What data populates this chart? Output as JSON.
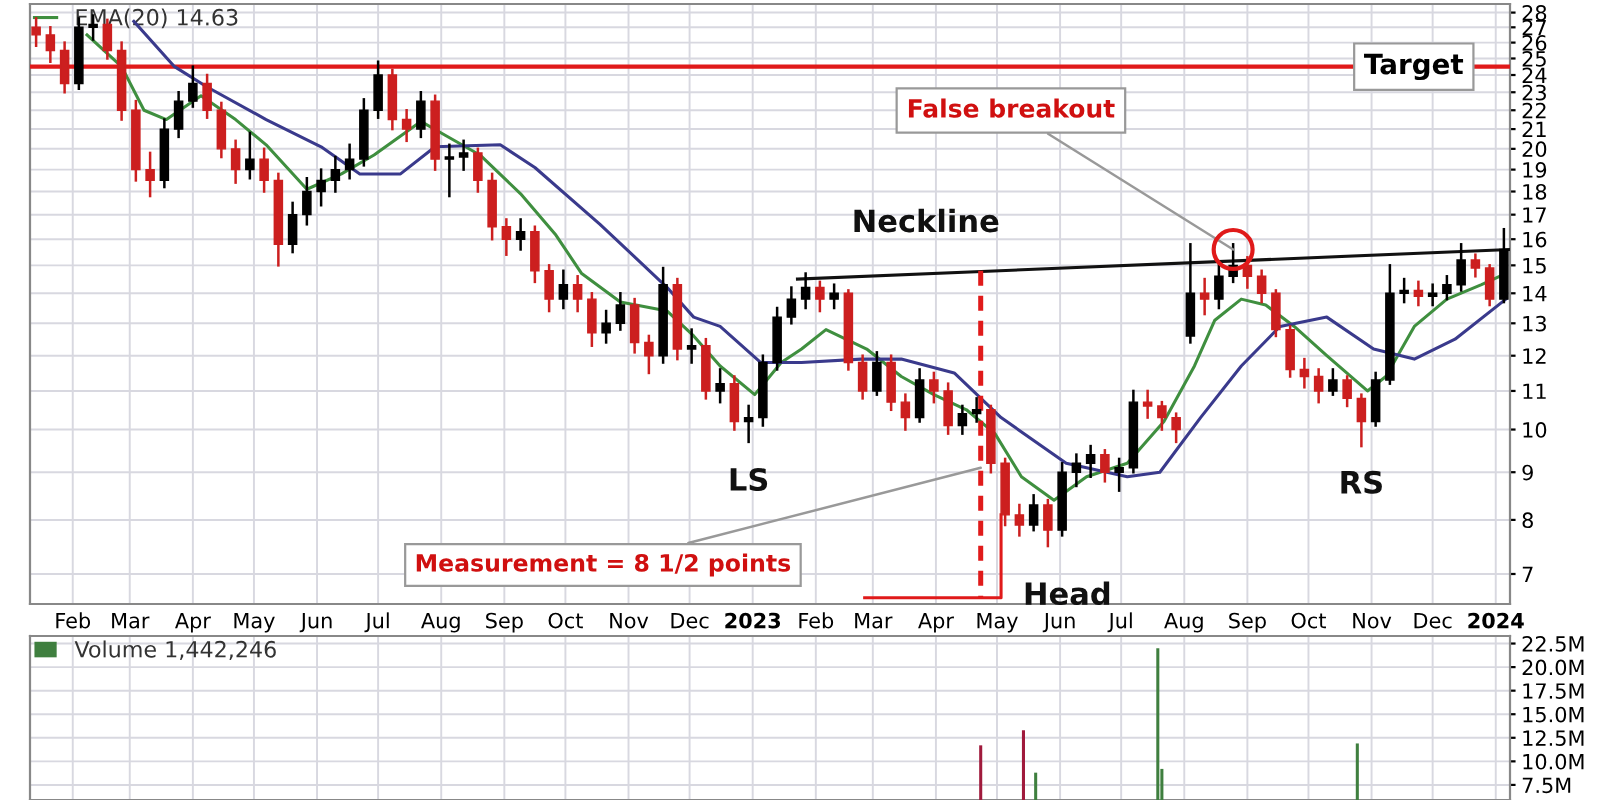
{
  "chart_data": [
    {
      "type": "candlestick",
      "log": true,
      "grid": true,
      "legend": "top left",
      "xlim": [
        "2022-01-11",
        "2024-01-08"
      ],
      "ylim": [
        6.5,
        28.6
      ],
      "xticks": [
        {
          "value": "2022-02-01",
          "label": "Feb"
        },
        {
          "value": "2022-03-01",
          "label": "Mar"
        },
        {
          "value": "2022-04-01",
          "label": "Apr"
        },
        {
          "value": "2022-05-01",
          "label": "May"
        },
        {
          "value": "2022-06-01",
          "label": "Jun"
        },
        {
          "value": "2022-07-01",
          "label": "Jul"
        },
        {
          "value": "2022-08-01",
          "label": "Aug"
        },
        {
          "value": "2022-09-01",
          "label": "Sep"
        },
        {
          "value": "2022-10-01",
          "label": "Oct"
        },
        {
          "value": "2022-11-01",
          "label": "Nov"
        },
        {
          "value": "2022-12-01",
          "label": "Dec"
        },
        {
          "value": "2023-01-01",
          "label": "2023"
        },
        {
          "value": "2023-02-01",
          "label": "Feb"
        },
        {
          "value": "2023-03-01",
          "label": "Mar"
        },
        {
          "value": "2023-04-01",
          "label": "Apr"
        },
        {
          "value": "2023-05-01",
          "label": "May"
        },
        {
          "value": "2023-06-01",
          "label": "Jun"
        },
        {
          "value": "2023-07-01",
          "label": "Jul"
        },
        {
          "value": "2023-08-01",
          "label": "Aug"
        },
        {
          "value": "2023-09-01",
          "label": "Sep"
        },
        {
          "value": "2023-10-01",
          "label": "Oct"
        },
        {
          "value": "2023-11-01",
          "label": "Nov"
        },
        {
          "value": "2023-12-01",
          "label": "Dec"
        },
        {
          "value": "2024-01-01",
          "label": "2024"
        }
      ],
      "yticks": [
        7,
        8,
        9,
        10,
        11,
        12,
        13,
        14,
        15,
        16,
        17,
        18,
        19,
        20,
        21,
        22,
        23,
        24,
        25,
        26,
        27,
        28
      ],
      "ref_lines": [
        {
          "axis": "y",
          "value": 24.5,
          "label": "Target",
          "color": "#e01a1a"
        }
      ],
      "annotations": [
        {
          "text": "False breakout",
          "x": "2023-08-25",
          "y": 15.6
        },
        {
          "text": "Neckline",
          "x": "2023-03-27",
          "y": 14.7
        },
        {
          "text": "LS",
          "x": "2022-12-30",
          "y": 9.8
        },
        {
          "text": "Measurement = 8 1/2 points",
          "x": "2023-04-23",
          "y": 9.1
        },
        {
          "text": "Head",
          "x": "2023-05-26",
          "y": 7.6
        },
        {
          "text": "RS",
          "x": "2023-10-27",
          "y": 9.6
        }
      ],
      "series": [
        {
          "type": "candlestick",
          "x": [
            "2022-01-14",
            "2022-01-21",
            "2022-01-28",
            "2022-02-04",
            "2022-02-11",
            "2022-02-18",
            "2022-02-25",
            "2022-03-04",
            "2022-03-11",
            "2022-03-18",
            "2022-03-25",
            "2022-04-01",
            "2022-04-08",
            "2022-04-15",
            "2022-04-22",
            "2022-04-29",
            "2022-05-06",
            "2022-05-13",
            "2022-05-20",
            "2022-05-27",
            "2022-06-03",
            "2022-06-10",
            "2022-06-17",
            "2022-06-24",
            "2022-07-01",
            "2022-07-08",
            "2022-07-15",
            "2022-07-22",
            "2022-07-29",
            "2022-08-05",
            "2022-08-12",
            "2022-08-19",
            "2022-08-26",
            "2022-09-02",
            "2022-09-09",
            "2022-09-16",
            "2022-09-23",
            "2022-09-30",
            "2022-10-07",
            "2022-10-14",
            "2022-10-21",
            "2022-10-28",
            "2022-11-04",
            "2022-11-11",
            "2022-11-18",
            "2022-11-25",
            "2022-12-02",
            "2022-12-09",
            "2022-12-16",
            "2022-12-23",
            "2022-12-30",
            "2023-01-06",
            "2023-01-13",
            "2023-01-20",
            "2023-01-27",
            "2023-02-03",
            "2023-02-10",
            "2023-02-17",
            "2023-02-24",
            "2023-03-03",
            "2023-03-10",
            "2023-03-17",
            "2023-03-24",
            "2023-03-31",
            "2023-04-07",
            "2023-04-14",
            "2023-04-21",
            "2023-04-28",
            "2023-05-05",
            "2023-05-12",
            "2023-05-19",
            "2023-05-26",
            "2023-06-02",
            "2023-06-09",
            "2023-06-16",
            "2023-06-23",
            "2023-06-30",
            "2023-07-07",
            "2023-07-14",
            "2023-07-21",
            "2023-07-28",
            "2023-08-04",
            "2023-08-11",
            "2023-08-18",
            "2023-08-25",
            "2023-09-01",
            "2023-09-08",
            "2023-09-15",
            "2023-09-22",
            "2023-09-29",
            "2023-10-06",
            "2023-10-13",
            "2023-10-20",
            "2023-10-27",
            "2023-11-03",
            "2023-11-10",
            "2023-11-17",
            "2023-11-24",
            "2023-12-01",
            "2023-12-08",
            "2023-12-15",
            "2023-12-22",
            "2023-12-29",
            "2024-01-05"
          ],
          "ohlc": [
            [
              27,
              27.6,
              25.8,
              26.5
            ],
            [
              26.5,
              27,
              24.8,
              25.5
            ],
            [
              25.5,
              26,
              23,
              23.5
            ],
            [
              23.5,
              27.6,
              23.2,
              27
            ],
            [
              27,
              27.8,
              26.2,
              27.2
            ],
            [
              27.2,
              27.5,
              25,
              25.5
            ],
            [
              25.5,
              26,
              21.5,
              22
            ],
            [
              22,
              22.5,
              18.5,
              19
            ],
            [
              19,
              19.8,
              17.8,
              18.5
            ],
            [
              18.5,
              21.5,
              18.2,
              21
            ],
            [
              21,
              23,
              20.6,
              22.5
            ],
            [
              22.5,
              24.5,
              22.2,
              23.5
            ],
            [
              23.5,
              24,
              21.6,
              22
            ],
            [
              22,
              22.4,
              19.6,
              20
            ],
            [
              20,
              20.4,
              18.4,
              19
            ],
            [
              19,
              20.8,
              18.6,
              19.5
            ],
            [
              19.5,
              20,
              18,
              18.5
            ],
            [
              18.5,
              18.8,
              15,
              15.8
            ],
            [
              15.8,
              17.5,
              15.5,
              17
            ],
            [
              17,
              18.6,
              16.6,
              18
            ],
            [
              18,
              19,
              17.4,
              18.5
            ],
            [
              18.5,
              19.6,
              18,
              19
            ],
            [
              19,
              20.2,
              18.6,
              19.5
            ],
            [
              19.5,
              22.6,
              19.2,
              22
            ],
            [
              22,
              24.8,
              21.6,
              24
            ],
            [
              24,
              24.3,
              21,
              21.5
            ],
            [
              21.5,
              22,
              20.4,
              21
            ],
            [
              21,
              23,
              20.6,
              22.5
            ],
            [
              22.5,
              22.8,
              19,
              19.5
            ],
            [
              19.5,
              20.2,
              17.8,
              19.6
            ],
            [
              19.6,
              20.4,
              19,
              19.8
            ],
            [
              19.8,
              20,
              18,
              18.5
            ],
            [
              18.5,
              18.8,
              16,
              16.5
            ],
            [
              16.5,
              16.8,
              15.4,
              16
            ],
            [
              16,
              16.8,
              15.6,
              16.3
            ],
            [
              16.3,
              16.5,
              14.4,
              14.8
            ],
            [
              14.8,
              15,
              13.4,
              13.8
            ],
            [
              13.8,
              14.8,
              13.5,
              14.3
            ],
            [
              14.3,
              14.6,
              13.4,
              13.8
            ],
            [
              13.8,
              14,
              12.3,
              12.7
            ],
            [
              12.7,
              13.4,
              12.4,
              13
            ],
            [
              13,
              14,
              12.8,
              13.6
            ],
            [
              13.6,
              13.8,
              12.1,
              12.4
            ],
            [
              12.4,
              12.6,
              11.5,
              12
            ],
            [
              12,
              14.9,
              11.8,
              14.3
            ],
            [
              14.3,
              14.5,
              11.9,
              12.2
            ],
            [
              12.2,
              12.8,
              11.8,
              12.3
            ],
            [
              12.3,
              12.5,
              10.8,
              11
            ],
            [
              11,
              11.6,
              10.7,
              11.2
            ],
            [
              11.2,
              11.4,
              10,
              10.2
            ],
            [
              10.2,
              10.6,
              9.7,
              10.3
            ],
            [
              10.3,
              12,
              10.1,
              11.8
            ],
            [
              11.8,
              13.5,
              11.6,
              13.2
            ],
            [
              13.2,
              14.2,
              13,
              13.8
            ],
            [
              13.8,
              14.7,
              13.5,
              14.2
            ],
            [
              14.2,
              14.4,
              13.4,
              13.8
            ],
            [
              13.8,
              14.3,
              13.5,
              14
            ],
            [
              14,
              14.1,
              11.6,
              11.8
            ],
            [
              11.8,
              12,
              10.8,
              11
            ],
            [
              11,
              12.1,
              10.9,
              11.8
            ],
            [
              11.8,
              12,
              10.5,
              10.7
            ],
            [
              10.7,
              10.9,
              10,
              10.3
            ],
            [
              10.3,
              11.6,
              10.2,
              11.3
            ],
            [
              11.3,
              11.5,
              10.7,
              11
            ],
            [
              11,
              11.2,
              9.9,
              10.1
            ],
            [
              10.1,
              10.6,
              9.9,
              10.4
            ],
            [
              10.4,
              10.8,
              10.2,
              10.5
            ],
            [
              10.5,
              10.6,
              9,
              9.2
            ],
            [
              9.2,
              9.3,
              7.9,
              8.1
            ],
            [
              8.1,
              8.3,
              7.7,
              7.9
            ],
            [
              7.9,
              8.5,
              7.8,
              8.3
            ],
            [
              8.3,
              8.4,
              7.5,
              7.8
            ],
            [
              7.8,
              9.2,
              7.7,
              9
            ],
            [
              9,
              9.4,
              8.7,
              9.2
            ],
            [
              9.2,
              9.6,
              8.9,
              9.4
            ],
            [
              9.4,
              9.5,
              8.8,
              9
            ],
            [
              9,
              9.3,
              8.6,
              9.1
            ],
            [
              9.1,
              11,
              9,
              10.7
            ],
            [
              10.7,
              11,
              10.3,
              10.6
            ],
            [
              10.6,
              10.7,
              10,
              10.3
            ],
            [
              10.3,
              10.4,
              9.7,
              10
            ],
            [
              12.6,
              15.8,
              12.4,
              14
            ],
            [
              14,
              14.5,
              13.3,
              13.8
            ],
            [
              13.8,
              15,
              13.5,
              14.6
            ],
            [
              14.6,
              15.8,
              14.4,
              15
            ],
            [
              15,
              15.3,
              14.2,
              14.6
            ],
            [
              14.6,
              14.8,
              13.7,
              14
            ],
            [
              14,
              14.1,
              12.6,
              12.8
            ],
            [
              12.8,
              12.9,
              11.4,
              11.6
            ],
            [
              11.6,
              11.9,
              11.1,
              11.4
            ],
            [
              11.4,
              11.6,
              10.7,
              11
            ],
            [
              11,
              11.6,
              10.9,
              11.3
            ],
            [
              11.3,
              11.4,
              10.6,
              10.8
            ],
            [
              10.8,
              10.9,
              9.6,
              10.2
            ],
            [
              10.2,
              11.5,
              10.1,
              11.3
            ],
            [
              11.3,
              15,
              11.2,
              14
            ],
            [
              14,
              14.5,
              13.7,
              14.1
            ],
            [
              14.1,
              14.4,
              13.6,
              13.9
            ],
            [
              13.9,
              14.3,
              13.6,
              14
            ],
            [
              14,
              14.6,
              13.8,
              14.3
            ],
            [
              14.3,
              15.8,
              14.1,
              15.2
            ],
            [
              15.2,
              15.4,
              14.6,
              14.9
            ],
            [
              14.9,
              15,
              13.6,
              13.8
            ],
            [
              13.8,
              16.4,
              13.7,
              15.6
            ]
          ],
          "colors": [
            "#cc1f1f",
            "#cc1f1f",
            "#cc1f1f",
            "#000000",
            "#000000",
            "#cc1f1f",
            "#cc1f1f",
            "#cc1f1f",
            "#cc1f1f",
            "#000000",
            "#000000",
            "#000000",
            "#cc1f1f",
            "#cc1f1f",
            "#cc1f1f",
            "#000000",
            "#cc1f1f",
            "#cc1f1f",
            "#000000",
            "#000000",
            "#000000",
            "#000000",
            "#000000",
            "#000000",
            "#000000",
            "#cc1f1f",
            "#cc1f1f",
            "#000000",
            "#cc1f1f",
            "#000000",
            "#000000",
            "#cc1f1f",
            "#cc1f1f",
            "#cc1f1f",
            "#000000",
            "#cc1f1f",
            "#cc1f1f",
            "#000000",
            "#cc1f1f",
            "#cc1f1f",
            "#000000",
            "#000000",
            "#cc1f1f",
            "#cc1f1f",
            "#000000",
            "#cc1f1f",
            "#000000",
            "#cc1f1f",
            "#000000",
            "#cc1f1f",
            "#000000",
            "#000000",
            "#000000",
            "#000000",
            "#000000",
            "#cc1f1f",
            "#000000",
            "#cc1f1f",
            "#cc1f1f",
            "#000000",
            "#cc1f1f",
            "#cc1f1f",
            "#000000",
            "#cc1f1f",
            "#cc1f1f",
            "#000000",
            "#000000",
            "#cc1f1f",
            "#cc1f1f",
            "#cc1f1f",
            "#000000",
            "#cc1f1f",
            "#000000",
            "#000000",
            "#000000",
            "#cc1f1f",
            "#000000",
            "#000000",
            "#cc1f1f",
            "#cc1f1f",
            "#cc1f1f",
            "#000000",
            "#cc1f1f",
            "#000000",
            "#000000",
            "#cc1f1f",
            "#cc1f1f",
            "#cc1f1f",
            "#cc1f1f",
            "#cc1f1f",
            "#cc1f1f",
            "#000000",
            "#cc1f1f",
            "#cc1f1f",
            "#000000",
            "#000000",
            "#000000",
            "#cc1f1f",
            "#000000",
            "#000000",
            "#000000",
            "#cc1f1f",
            "#cc1f1f",
            "#000000"
          ]
        },
        {
          "type": "line",
          "name": "EMA(20) 14.63",
          "color": "#3f8f3f",
          "line_style": "solid",
          "x": [
            "2022-02-08",
            "2022-02-25",
            "2022-03-08",
            "2022-03-19",
            "2022-04-05",
            "2022-04-22",
            "2022-05-07",
            "2022-05-27",
            "2022-06-13",
            "2022-06-29",
            "2022-07-22",
            "2022-08-01",
            "2022-08-20",
            "2022-09-09",
            "2022-09-26",
            "2022-10-09",
            "2022-10-28",
            "2022-11-20",
            "2022-12-03",
            "2022-12-16",
            "2023-01-02",
            "2023-01-15",
            "2023-01-25",
            "2023-02-06",
            "2023-02-26",
            "2023-03-15",
            "2023-03-31",
            "2023-04-16",
            "2023-04-30",
            "2023-05-13",
            "2023-05-29",
            "2023-06-14",
            "2023-07-04",
            "2023-07-22",
            "2023-08-06",
            "2023-08-16",
            "2023-08-29",
            "2023-09-10",
            "2023-09-24",
            "2023-10-10",
            "2023-10-30",
            "2023-11-08",
            "2023-11-22",
            "2023-12-08",
            "2023-12-25",
            "2024-01-03"
          ],
          "values": [
            26.5,
            24.5,
            22,
            21.5,
            22.8,
            21.5,
            20.2,
            18.1,
            18.8,
            19.7,
            21.4,
            20.8,
            19.7,
            17.9,
            16.2,
            14.7,
            13.7,
            13.4,
            12.6,
            11.7,
            10.9,
            11.8,
            12.2,
            12.8,
            12.2,
            11.4,
            10.9,
            10.5,
            9.9,
            8.9,
            8.4,
            8.9,
            9.2,
            10.2,
            11.7,
            13.1,
            13.8,
            13.6,
            12.9,
            12,
            11,
            11.4,
            12.9,
            13.8,
            14.3,
            14.6
          ]
        },
        {
          "type": "line",
          "color": "#3a3a8c",
          "line_style": "solid",
          "x": [
            "2022-03-03",
            "2022-03-23",
            "2022-04-08",
            "2022-05-07",
            "2022-06-03",
            "2022-06-22",
            "2022-07-12",
            "2022-07-29",
            "2022-08-30",
            "2022-09-16",
            "2022-10-18",
            "2022-11-20",
            "2022-12-03",
            "2022-12-16",
            "2023-01-05",
            "2023-01-25",
            "2023-02-23",
            "2023-03-15",
            "2023-04-10",
            "2023-05-03",
            "2023-06-04",
            "2023-07-04",
            "2023-07-20",
            "2023-08-09",
            "2023-08-29",
            "2023-09-17",
            "2023-10-10",
            "2023-11-02",
            "2023-11-22",
            "2023-12-12",
            "2024-01-06"
          ],
          "values": [
            27.4,
            24.5,
            23.3,
            21.5,
            20.1,
            18.8,
            18.8,
            20.1,
            20.2,
            19.1,
            16.6,
            14.2,
            13.2,
            12.9,
            11.8,
            11.8,
            11.9,
            11.9,
            11.5,
            10.3,
            9.2,
            8.9,
            9.0,
            10.3,
            11.7,
            12.9,
            13.2,
            12.2,
            11.9,
            12.5,
            13.8
          ]
        },
        {
          "type": "line",
          "color": "#111111",
          "line_style": "solid",
          "x": [
            "2023-01-23",
            "2024-01-08"
          ],
          "values": [
            14.5,
            15.6
          ]
        },
        {
          "type": "line",
          "color": "#e01a1a",
          "line_style": "dashed",
          "x": [
            "2023-04-23",
            "2023-04-23"
          ],
          "values": [
            14.8,
            6.6
          ]
        },
        {
          "type": "line",
          "color": "#e01a1a",
          "line_style": "solid",
          "x": [
            "2023-02-25",
            "2023-05-03",
            "2023-05-03"
          ],
          "values": [
            6.6,
            6.6,
            8.1
          ]
        }
      ]
    },
    {
      "type": "bar",
      "grid": true,
      "legend": "top left",
      "tick_labels": "y",
      "xlim": [
        "2022-01-11",
        "2024-01-08"
      ],
      "ylim": [
        5900000,
        23300000
      ],
      "xticks": [
        {
          "value": "2022-02-01",
          "label": null
        },
        {
          "value": "2022-03-01",
          "label": null
        },
        {
          "value": "2022-04-01",
          "label": null
        },
        {
          "value": "2022-05-01",
          "label": null
        },
        {
          "value": "2022-06-01",
          "label": null
        },
        {
          "value": "2022-07-01",
          "label": null
        },
        {
          "value": "2022-08-01",
          "label": null
        },
        {
          "value": "2022-09-01",
          "label": null
        },
        {
          "value": "2022-10-01",
          "label": null
        },
        {
          "value": "2022-11-01",
          "label": null
        },
        {
          "value": "2022-12-01",
          "label": null
        },
        {
          "value": "2023-01-01",
          "label": null
        },
        {
          "value": "2023-02-01",
          "label": null
        },
        {
          "value": "2023-03-01",
          "label": null
        },
        {
          "value": "2023-04-01",
          "label": null
        },
        {
          "value": "2023-05-01",
          "label": null
        },
        {
          "value": "2023-06-01",
          "label": null
        },
        {
          "value": "2023-07-01",
          "label": null
        },
        {
          "value": "2023-08-01",
          "label": null
        },
        {
          "value": "2023-09-01",
          "label": null
        },
        {
          "value": "2023-10-01",
          "label": null
        },
        {
          "value": "2023-11-01",
          "label": null
        },
        {
          "value": "2023-12-01",
          "label": null
        },
        {
          "value": "2024-01-01",
          "label": null
        }
      ],
      "yticks": [
        {
          "value": 7500000,
          "label": "7.5M"
        },
        {
          "value": 10000000,
          "label": "10.0M"
        },
        {
          "value": 12500000,
          "label": "12.5M"
        },
        {
          "value": 15000000,
          "label": "15.0M"
        },
        {
          "value": 17500000,
          "label": "17.5M"
        },
        {
          "value": 20000000,
          "label": "20.0M"
        },
        {
          "value": 22500000,
          "label": "22.5M"
        }
      ],
      "series": [
        {
          "name": "Volume 1,442,246",
          "color": "#3f7f3f",
          "x": [
            "2023-04-23",
            "2023-05-14",
            "2023-05-20",
            "2023-07-19",
            "2023-07-21",
            "2023-10-25"
          ],
          "values": [
            11700000,
            13300000,
            8800000,
            22000000,
            9200000,
            11900000
          ],
          "colors": [
            "#a01a3c",
            "#a01a3c",
            "#3f7f3f",
            "#3f7f3f",
            "#3f7f3f",
            "#3f7f3f"
          ]
        }
      ]
    }
  ]
}
